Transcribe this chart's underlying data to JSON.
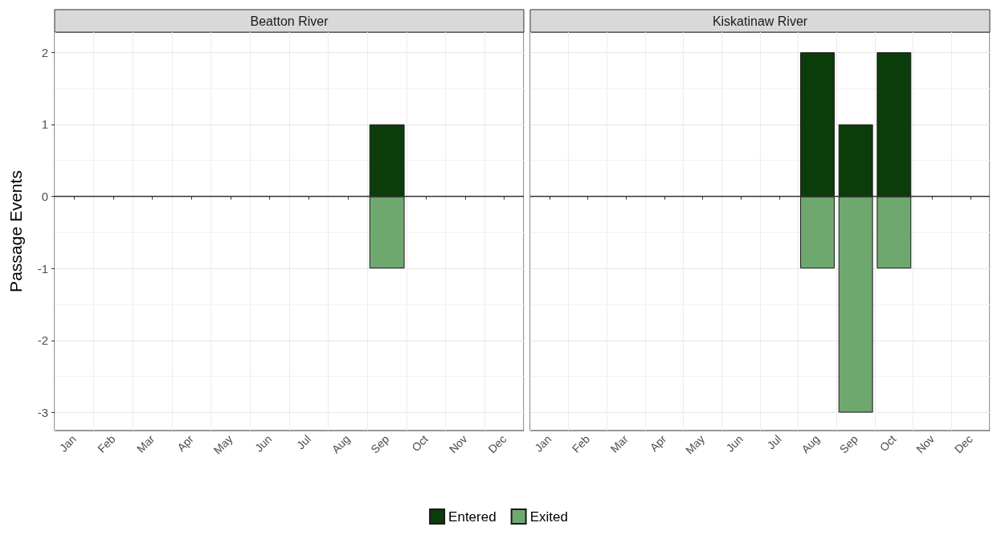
{
  "chart_data": [
    {
      "type": "bar",
      "title": "Beatton River",
      "ylabel": "Passage Events",
      "categories": [
        "Jan",
        "Feb",
        "Mar",
        "Apr",
        "May",
        "Jun",
        "Jul",
        "Aug",
        "Sep",
        "Oct",
        "Nov",
        "Dec"
      ],
      "stacked": true,
      "series": [
        {
          "name": "Entered",
          "color": "#0b3d0b",
          "values": [
            null,
            null,
            null,
            null,
            null,
            null,
            null,
            null,
            1,
            null,
            null,
            null
          ]
        },
        {
          "name": "Exited",
          "color": "#6fa86f",
          "values": [
            null,
            null,
            null,
            null,
            null,
            null,
            null,
            null,
            -1,
            null,
            null,
            null
          ]
        }
      ],
      "ylim": [
        -3.25,
        2.28
      ],
      "yticks": [
        -3,
        -2,
        -1,
        0,
        1,
        2
      ],
      "grid": true,
      "legend": "bottom",
      "ref_lines": [
        {
          "axis": "y",
          "value": 0,
          "color": "#333333"
        }
      ]
    },
    {
      "type": "bar",
      "title": "Kiskatinaw River",
      "categories": [
        "Jan",
        "Feb",
        "Mar",
        "Apr",
        "May",
        "Jun",
        "Jul",
        "Aug",
        "Sep",
        "Oct",
        "Nov",
        "Dec"
      ],
      "stacked": true,
      "series": [
        {
          "color": "#0b3d0b",
          "values": [
            null,
            null,
            null,
            null,
            null,
            null,
            null,
            2,
            1,
            2,
            null,
            null
          ]
        },
        {
          "color": "#6fa86f",
          "values": [
            null,
            null,
            null,
            null,
            null,
            null,
            null,
            -1,
            -3,
            -1,
            null,
            null
          ]
        }
      ],
      "ylim": [
        -3.25,
        2.28
      ],
      "yticks": [
        -3,
        -2,
        -1,
        0,
        1,
        2
      ],
      "grid": true,
      "tick_labels": "x",
      "ref_lines": [
        {
          "axis": "y",
          "value": 0,
          "color": "#333333"
        }
      ]
    }
  ]
}
